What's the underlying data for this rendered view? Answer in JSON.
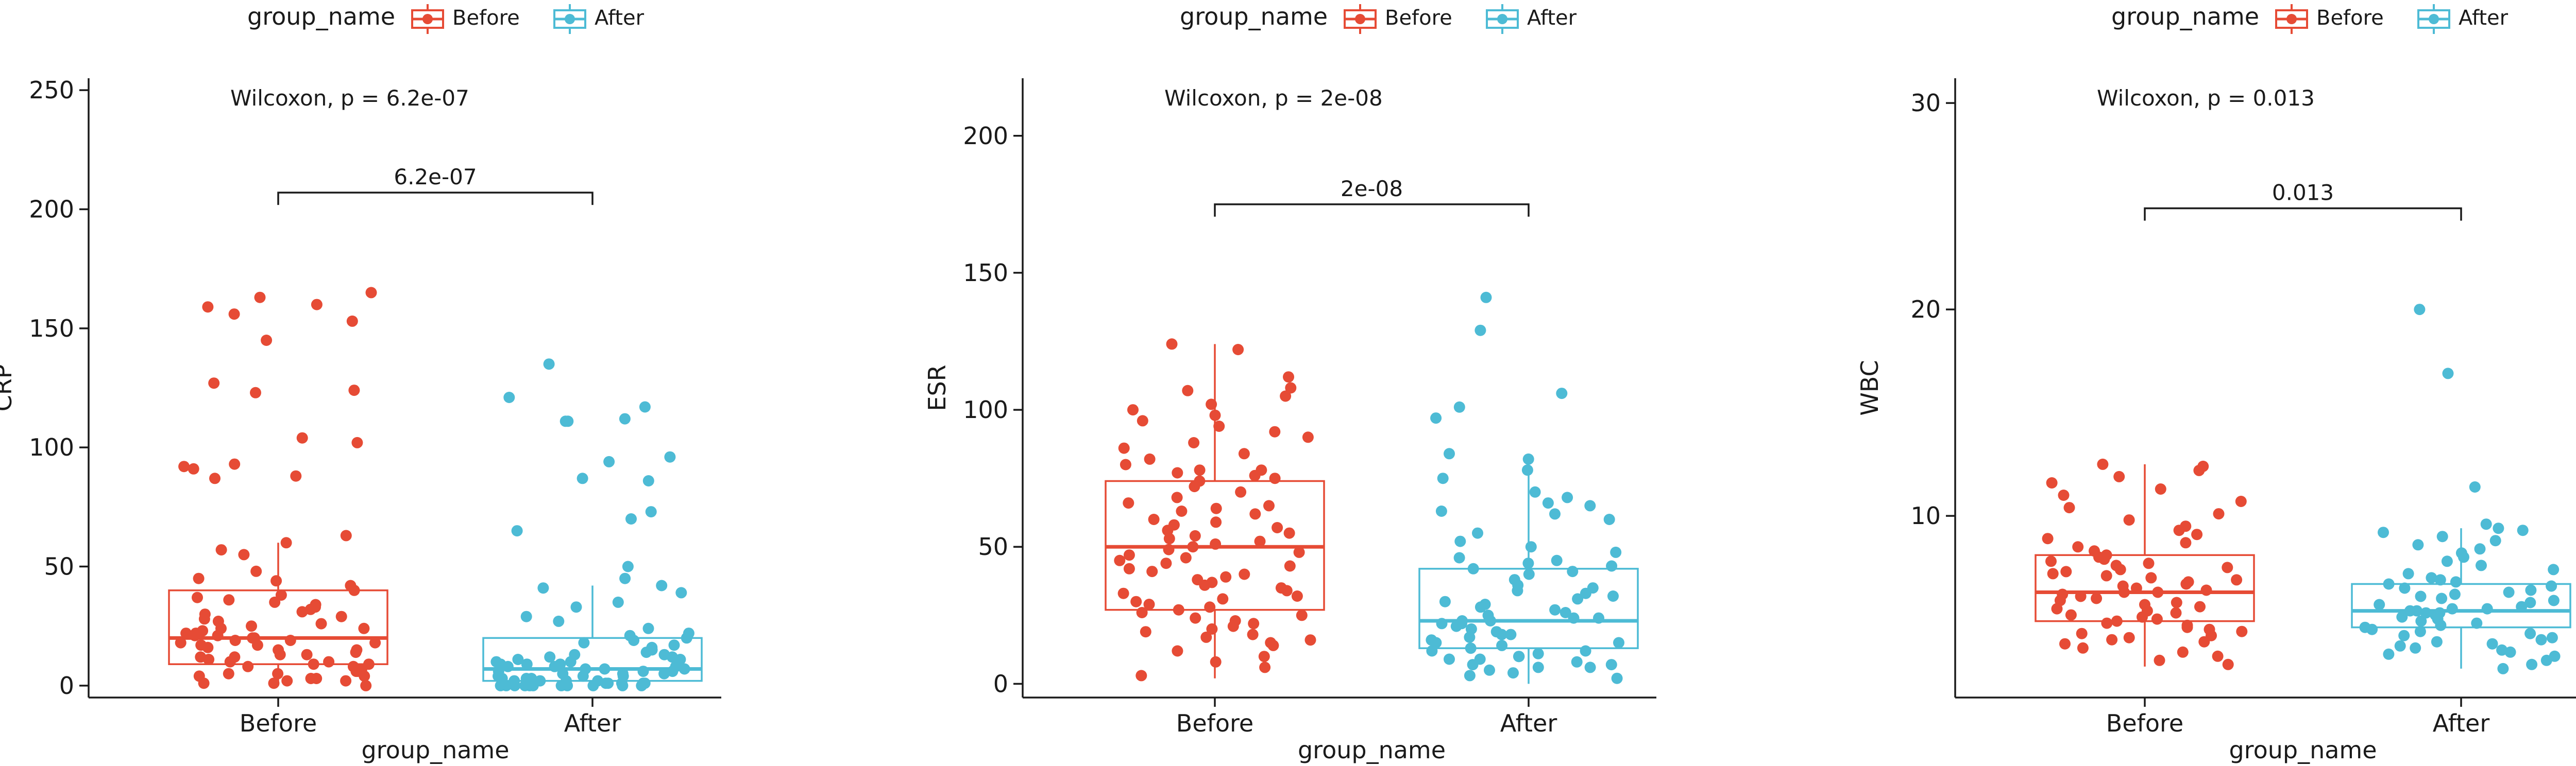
{
  "colors": {
    "before": "#E64B35",
    "after": "#4DBBD5",
    "axis": "#1a1a1a"
  },
  "chart_data": [
    {
      "type": "box",
      "legend_title": "group_name",
      "legend_placement": "top",
      "xlabel": "group_name",
      "ylabel": "CRP",
      "categories": [
        "Before",
        "After"
      ],
      "ylim": [
        -5,
        255
      ],
      "yticks": [
        0,
        50,
        100,
        150,
        200,
        250
      ],
      "annotation": "Wilcoxon, p = 6.2e-07",
      "comparison_label": "6.2e-07",
      "comparison_y": 207,
      "series": [
        {
          "name": "Before",
          "box": {
            "q1": 9,
            "median": 20,
            "q3": 40,
            "whisker_low": 0,
            "whisker_high": 60
          },
          "points": [
            156,
            145,
            165,
            163,
            160,
            159,
            153,
            127,
            124,
            123,
            104,
            102,
            93,
            92,
            91,
            88,
            87,
            63,
            60,
            57,
            55,
            48,
            45,
            44,
            42,
            40,
            38,
            37,
            36,
            35,
            34,
            33,
            32,
            31,
            30,
            29,
            28,
            27,
            26,
            25,
            24,
            24,
            23,
            22,
            22,
            21,
            21,
            20,
            20,
            19,
            19,
            18,
            18,
            17,
            17,
            16,
            15,
            15,
            14,
            13,
            13,
            12,
            12,
            11,
            10,
            10,
            9,
            9,
            8,
            8,
            7,
            6,
            6,
            5,
            5,
            4,
            4,
            3,
            3,
            2,
            2,
            1,
            1,
            0
          ]
        },
        {
          "name": "After",
          "box": {
            "q1": 2,
            "median": 7,
            "q3": 20,
            "whisker_low": 0,
            "whisker_high": 42
          },
          "points": [
            135,
            121,
            117,
            112,
            111,
            111,
            96,
            94,
            87,
            86,
            73,
            70,
            65,
            50,
            45,
            42,
            41,
            39,
            35,
            33,
            29,
            27,
            24,
            22,
            21,
            20,
            19,
            18,
            17,
            16,
            15,
            14,
            13,
            13,
            12,
            12,
            11,
            11,
            10,
            10,
            9,
            9,
            9,
            8,
            8,
            8,
            7,
            7,
            7,
            6,
            6,
            6,
            5,
            5,
            5,
            4,
            4,
            4,
            3,
            3,
            3,
            3,
            2,
            2,
            2,
            2,
            1,
            1,
            1,
            1,
            1,
            0,
            0,
            0,
            0,
            0,
            0,
            0,
            0,
            0,
            0,
            0
          ]
        }
      ]
    },
    {
      "type": "box",
      "legend_title": "group_name",
      "legend_placement": "top",
      "xlabel": "group_name",
      "ylabel": "ESR",
      "categories": [
        "Before",
        "After"
      ],
      "ylim": [
        -5,
        221
      ],
      "yticks": [
        0,
        50,
        100,
        150,
        200
      ],
      "annotation": "Wilcoxon, p = 2e-08",
      "comparison_label": "2e-08",
      "comparison_y": 175,
      "series": [
        {
          "name": "Before",
          "box": {
            "q1": 27,
            "median": 50,
            "q3": 74,
            "whisker_low": 2,
            "whisker_high": 124
          },
          "points": [
            124,
            122,
            112,
            108,
            107,
            105,
            102,
            100,
            98,
            96,
            94,
            92,
            90,
            88,
            86,
            84,
            82,
            80,
            78,
            78,
            77,
            76,
            75,
            74,
            72,
            70,
            68,
            66,
            65,
            64,
            63,
            62,
            60,
            59,
            58,
            57,
            56,
            55,
            54,
            53,
            52,
            51,
            50,
            49,
            48,
            47,
            46,
            45,
            44,
            43,
            42,
            41,
            40,
            39,
            38,
            37,
            36,
            35,
            34,
            33,
            32,
            31,
            30,
            29,
            28,
            27,
            26,
            25,
            24,
            23,
            22,
            21,
            20,
            19,
            18,
            17,
            16,
            15,
            14,
            12,
            10,
            8,
            6,
            3
          ]
        },
        {
          "name": "After",
          "box": {
            "q1": 13,
            "median": 23,
            "q3": 42,
            "whisker_low": 0,
            "whisker_high": 84
          },
          "points": [
            141,
            129,
            106,
            101,
            97,
            84,
            82,
            78,
            75,
            70,
            68,
            66,
            65,
            63,
            62,
            60,
            55,
            52,
            50,
            48,
            46,
            45,
            44,
            43,
            42,
            41,
            40,
            38,
            36,
            35,
            34,
            33,
            32,
            31,
            30,
            29,
            28,
            27,
            26,
            25,
            24,
            24,
            23,
            23,
            22,
            22,
            21,
            20,
            19,
            18,
            18,
            17,
            16,
            15,
            15,
            14,
            13,
            12,
            12,
            11,
            10,
            10,
            9,
            9,
            8,
            7,
            7,
            6,
            6,
            5,
            4,
            3,
            2
          ]
        }
      ]
    },
    {
      "type": "box",
      "legend_title": "group_name",
      "legend_placement": "top",
      "xlabel": "group_name",
      "ylabel": "WBC",
      "categories": [
        "Before",
        "After"
      ],
      "ylim": [
        1.2,
        31.2
      ],
      "yticks": [
        10,
        20,
        30
      ],
      "annotation": "Wilcoxon, p = 0.013",
      "comparison_label": "0.013",
      "comparison_y": 24.9,
      "series": [
        {
          "name": "Before",
          "box": {
            "q1": 4.9,
            "median": 6.3,
            "q3": 8.1,
            "whisker_low": 2.7,
            "whisker_high": 12.5
          },
          "points": [
            12.5,
            12.4,
            12.2,
            11.9,
            11.6,
            11.3,
            11.0,
            10.7,
            10.4,
            10.1,
            9.8,
            9.5,
            9.3,
            9.1,
            8.9,
            8.7,
            8.5,
            8.3,
            8.1,
            8.0,
            7.9,
            7.8,
            7.7,
            7.6,
            7.5,
            7.4,
            7.3,
            7.2,
            7.1,
            7.0,
            6.9,
            6.8,
            6.7,
            6.6,
            6.5,
            6.4,
            6.3,
            6.3,
            6.2,
            6.1,
            6.0,
            5.9,
            5.8,
            5.7,
            5.6,
            5.5,
            5.4,
            5.3,
            5.2,
            5.1,
            5.0,
            4.9,
            4.8,
            4.7,
            4.6,
            4.5,
            4.4,
            4.3,
            4.2,
            4.1,
            4.0,
            3.9,
            3.8,
            3.6,
            3.4,
            3.2,
            3.0,
            2.8
          ]
        },
        {
          "name": "After",
          "box": {
            "q1": 4.6,
            "median": 5.4,
            "q3": 6.7,
            "whisker_low": 2.6,
            "whisker_high": 9.4
          },
          "points": [
            20.0,
            16.9,
            11.4,
            9.6,
            9.4,
            9.3,
            9.2,
            9.0,
            8.8,
            8.6,
            8.4,
            8.2,
            8.0,
            7.8,
            7.6,
            7.4,
            7.2,
            7.0,
            6.9,
            6.8,
            6.7,
            6.6,
            6.5,
            6.4,
            6.3,
            6.2,
            6.1,
            6.0,
            5.9,
            5.8,
            5.7,
            5.6,
            5.5,
            5.5,
            5.4,
            5.4,
            5.3,
            5.3,
            5.2,
            5.1,
            5.0,
            4.9,
            4.8,
            4.7,
            4.6,
            4.5,
            4.4,
            4.3,
            4.2,
            4.1,
            4.0,
            3.9,
            3.8,
            3.7,
            3.6,
            3.5,
            3.4,
            3.3,
            3.2,
            3.0,
            2.8,
            2.6
          ]
        }
      ]
    }
  ]
}
